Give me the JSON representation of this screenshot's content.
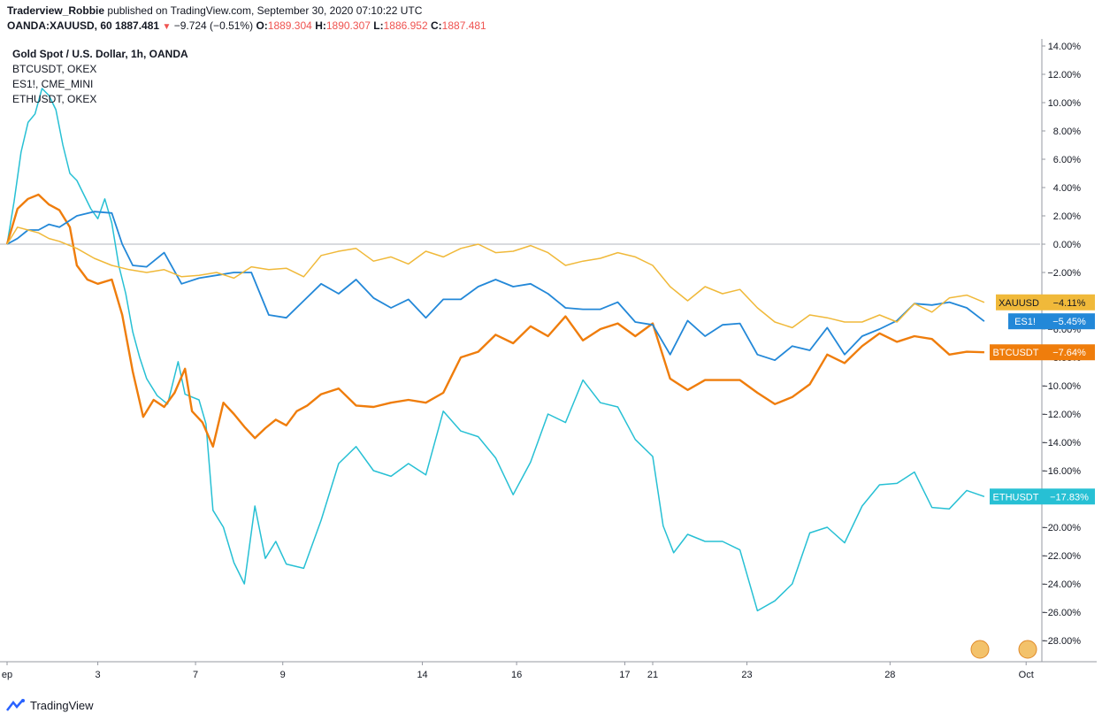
{
  "header": {
    "author": "Traderview_Robbie",
    "published": "published on TradingView.com, September 30, 2020 07:10:22 UTC"
  },
  "ohlc": {
    "symbol": "OANDA:XAUUSD, 60",
    "last": "1887.481",
    "change": "−9.724 (−0.51%)",
    "o_label": "O:",
    "o": "1889.304",
    "h_label": "H:",
    "h": "1890.307",
    "l_label": "L:",
    "l": "1886.952",
    "c_label": "C:",
    "c": "1887.481"
  },
  "legend": {
    "main": "Gold Spot / U.S. Dollar, 1h, OANDA",
    "items": [
      "BTCUSDT, OKEX",
      "ES1!, CME_MINI",
      "ETHUSDT, OKEX"
    ]
  },
  "footer": {
    "brand": "TradingView"
  },
  "colors": {
    "xauusd": "#f0b93a",
    "es1": "#2388d8",
    "btcusdt": "#ef7d0c",
    "ethusdt": "#27c0d4",
    "grid": "#e0e3eb",
    "zero_line": "#b2b5be"
  },
  "chart_data": {
    "type": "line",
    "ylabel_format": "percent",
    "ylim": [
      -29.5,
      14.5
    ],
    "yticks": [
      "14.00%",
      "12.00%",
      "10.00%",
      "8.00%",
      "6.00%",
      "4.00%",
      "2.00%",
      "0.00%",
      "−2.00%",
      "−4.00%",
      "−6.00%",
      "−8.00%",
      "−10.00%",
      "−12.00%",
      "−14.00%",
      "−16.00%",
      "−18.00%",
      "−20.00%",
      "−22.00%",
      "−24.00%",
      "−26.00%",
      "−28.00%"
    ],
    "ytick_values": [
      14,
      12,
      10,
      8,
      6,
      4,
      2,
      0,
      -2,
      -4,
      -6,
      -8,
      -10,
      -12,
      -14,
      -16,
      -18,
      -20,
      -22,
      -24,
      -26,
      -28
    ],
    "xlim": [
      0,
      29.6
    ],
    "xticks": [
      {
        "label": "ep",
        "x": 0
      },
      {
        "label": "3",
        "x": 2.6
      },
      {
        "label": "7",
        "x": 5.4
      },
      {
        "label": "9",
        "x": 7.9
      },
      {
        "label": "14",
        "x": 11.9
      },
      {
        "label": "16",
        "x": 14.6
      },
      {
        "label": "17",
        "x": 17.7
      },
      {
        "label": "21",
        "x": 18.5
      },
      {
        "label": "23",
        "x": 21.2
      },
      {
        "label": "28",
        "x": 25.3
      },
      {
        "label": "Oct",
        "x": 29.2
      }
    ],
    "series": [
      {
        "name": "XAUUSD",
        "tag": "XAUUSD",
        "last_label": "−4.11%",
        "last": -4.11,
        "points": [
          [
            0,
            0
          ],
          [
            0.3,
            1.2
          ],
          [
            0.6,
            1.0
          ],
          [
            0.9,
            0.8
          ],
          [
            1.2,
            0.4
          ],
          [
            1.5,
            0.2
          ],
          [
            2.0,
            -0.3
          ],
          [
            2.5,
            -1.0
          ],
          [
            3.0,
            -1.5
          ],
          [
            3.5,
            -1.8
          ],
          [
            4.0,
            -2.0
          ],
          [
            4.5,
            -1.8
          ],
          [
            5.0,
            -2.3
          ],
          [
            5.5,
            -2.2
          ],
          [
            6.0,
            -2.0
          ],
          [
            6.5,
            -2.4
          ],
          [
            7.0,
            -1.6
          ],
          [
            7.5,
            -1.8
          ],
          [
            8.0,
            -1.7
          ],
          [
            8.5,
            -2.3
          ],
          [
            9.0,
            -0.8
          ],
          [
            9.5,
            -0.5
          ],
          [
            10.0,
            -0.3
          ],
          [
            10.5,
            -1.2
          ],
          [
            11.0,
            -0.9
          ],
          [
            11.5,
            -1.4
          ],
          [
            12.0,
            -0.5
          ],
          [
            12.5,
            -0.9
          ],
          [
            13.0,
            -0.3
          ],
          [
            13.5,
            0.0
          ],
          [
            14.0,
            -0.6
          ],
          [
            14.5,
            -0.5
          ],
          [
            15.0,
            -0.1
          ],
          [
            15.5,
            -0.6
          ],
          [
            16.0,
            -1.5
          ],
          [
            16.5,
            -1.2
          ],
          [
            17.0,
            -1.0
          ],
          [
            17.5,
            -0.6
          ],
          [
            18.0,
            -0.9
          ],
          [
            18.5,
            -1.5
          ],
          [
            19.0,
            -3.0
          ],
          [
            19.5,
            -4.0
          ],
          [
            20.0,
            -3.0
          ],
          [
            20.5,
            -3.5
          ],
          [
            21.0,
            -3.2
          ],
          [
            21.5,
            -4.5
          ],
          [
            22.0,
            -5.5
          ],
          [
            22.5,
            -5.9
          ],
          [
            23.0,
            -5.0
          ],
          [
            23.5,
            -5.2
          ],
          [
            24.0,
            -5.5
          ],
          [
            24.5,
            -5.5
          ],
          [
            25.0,
            -5.0
          ],
          [
            25.5,
            -5.5
          ],
          [
            26.0,
            -4.2
          ],
          [
            26.5,
            -4.8
          ],
          [
            27.0,
            -3.8
          ],
          [
            27.5,
            -3.6
          ],
          [
            28.0,
            -4.11
          ]
        ]
      },
      {
        "name": "ES1!",
        "tag": "ES1!",
        "last_label": "−5.45%",
        "last": -5.45,
        "points": [
          [
            0,
            0
          ],
          [
            0.3,
            0.4
          ],
          [
            0.6,
            1.0
          ],
          [
            0.9,
            1.0
          ],
          [
            1.2,
            1.4
          ],
          [
            1.5,
            1.2
          ],
          [
            2.0,
            2.0
          ],
          [
            2.5,
            2.3
          ],
          [
            3.0,
            2.2
          ],
          [
            3.3,
            0.0
          ],
          [
            3.6,
            -1.5
          ],
          [
            4.0,
            -1.6
          ],
          [
            4.5,
            -0.6
          ],
          [
            5.0,
            -2.8
          ],
          [
            5.5,
            -2.4
          ],
          [
            6.0,
            -2.2
          ],
          [
            6.5,
            -2.0
          ],
          [
            7.0,
            -2.0
          ],
          [
            7.5,
            -5.0
          ],
          [
            8.0,
            -5.2
          ],
          [
            8.5,
            -4.0
          ],
          [
            9.0,
            -2.8
          ],
          [
            9.5,
            -3.5
          ],
          [
            10.0,
            -2.5
          ],
          [
            10.5,
            -3.8
          ],
          [
            11.0,
            -4.5
          ],
          [
            11.5,
            -3.9
          ],
          [
            12.0,
            -5.2
          ],
          [
            12.5,
            -3.9
          ],
          [
            13.0,
            -3.9
          ],
          [
            13.5,
            -3.0
          ],
          [
            14.0,
            -2.5
          ],
          [
            14.5,
            -3.0
          ],
          [
            15.0,
            -2.8
          ],
          [
            15.5,
            -3.5
          ],
          [
            16.0,
            -4.5
          ],
          [
            16.5,
            -4.6
          ],
          [
            17.0,
            -4.6
          ],
          [
            17.5,
            -4.1
          ],
          [
            18.0,
            -5.5
          ],
          [
            18.5,
            -5.7
          ],
          [
            19.0,
            -7.8
          ],
          [
            19.5,
            -5.4
          ],
          [
            20.0,
            -6.5
          ],
          [
            20.5,
            -5.7
          ],
          [
            21.0,
            -5.6
          ],
          [
            21.5,
            -7.8
          ],
          [
            22.0,
            -8.2
          ],
          [
            22.5,
            -7.2
          ],
          [
            23.0,
            -7.5
          ],
          [
            23.5,
            -5.9
          ],
          [
            24.0,
            -7.8
          ],
          [
            24.5,
            -6.5
          ],
          [
            25.0,
            -6.0
          ],
          [
            25.5,
            -5.4
          ],
          [
            26.0,
            -4.2
          ],
          [
            26.5,
            -4.3
          ],
          [
            27.0,
            -4.1
          ],
          [
            27.5,
            -4.5
          ],
          [
            28.0,
            -5.45
          ]
        ]
      },
      {
        "name": "BTCUSDT",
        "tag": "BTCUSDT",
        "last_label": "−7.64%",
        "last": -7.64,
        "points": [
          [
            0,
            0
          ],
          [
            0.3,
            2.5
          ],
          [
            0.6,
            3.2
          ],
          [
            0.9,
            3.5
          ],
          [
            1.2,
            2.8
          ],
          [
            1.5,
            2.4
          ],
          [
            1.8,
            1.2
          ],
          [
            2.0,
            -1.5
          ],
          [
            2.3,
            -2.5
          ],
          [
            2.6,
            -2.8
          ],
          [
            3.0,
            -2.5
          ],
          [
            3.3,
            -5.0
          ],
          [
            3.6,
            -9.0
          ],
          [
            3.9,
            -12.2
          ],
          [
            4.2,
            -11.0
          ],
          [
            4.5,
            -11.5
          ],
          [
            4.8,
            -10.5
          ],
          [
            5.1,
            -8.8
          ],
          [
            5.3,
            -11.8
          ],
          [
            5.6,
            -12.6
          ],
          [
            5.9,
            -14.3
          ],
          [
            6.2,
            -11.2
          ],
          [
            6.5,
            -12.0
          ],
          [
            6.8,
            -12.9
          ],
          [
            7.1,
            -13.7
          ],
          [
            7.4,
            -13.0
          ],
          [
            7.7,
            -12.4
          ],
          [
            8.0,
            -12.8
          ],
          [
            8.3,
            -11.8
          ],
          [
            8.6,
            -11.4
          ],
          [
            9.0,
            -10.6
          ],
          [
            9.5,
            -10.2
          ],
          [
            10.0,
            -11.4
          ],
          [
            10.5,
            -11.5
          ],
          [
            11.0,
            -11.2
          ],
          [
            11.5,
            -11.0
          ],
          [
            12.0,
            -11.2
          ],
          [
            12.5,
            -10.5
          ],
          [
            13.0,
            -8.0
          ],
          [
            13.5,
            -7.6
          ],
          [
            14.0,
            -6.4
          ],
          [
            14.5,
            -7.0
          ],
          [
            15.0,
            -5.8
          ],
          [
            15.5,
            -6.5
          ],
          [
            16.0,
            -5.1
          ],
          [
            16.5,
            -6.8
          ],
          [
            17.0,
            -6.0
          ],
          [
            17.5,
            -5.6
          ],
          [
            18.0,
            -6.5
          ],
          [
            18.5,
            -5.6
          ],
          [
            19.0,
            -9.5
          ],
          [
            19.5,
            -10.3
          ],
          [
            20.0,
            -9.6
          ],
          [
            20.5,
            -9.6
          ],
          [
            21.0,
            -9.6
          ],
          [
            21.5,
            -10.5
          ],
          [
            22.0,
            -11.3
          ],
          [
            22.5,
            -10.8
          ],
          [
            23.0,
            -9.9
          ],
          [
            23.5,
            -7.8
          ],
          [
            24.0,
            -8.4
          ],
          [
            24.5,
            -7.2
          ],
          [
            25.0,
            -6.3
          ],
          [
            25.5,
            -6.9
          ],
          [
            26.0,
            -6.5
          ],
          [
            26.5,
            -6.7
          ],
          [
            27.0,
            -7.8
          ],
          [
            27.5,
            -7.6
          ],
          [
            28.0,
            -7.64
          ]
        ]
      },
      {
        "name": "ETHUSDT",
        "tag": "ETHUSDT",
        "last_label": "−17.83%",
        "last": -17.83,
        "points": [
          [
            0,
            0
          ],
          [
            0.2,
            3.0
          ],
          [
            0.4,
            6.5
          ],
          [
            0.6,
            8.6
          ],
          [
            0.8,
            9.2
          ],
          [
            1.0,
            11.0
          ],
          [
            1.2,
            10.5
          ],
          [
            1.4,
            9.5
          ],
          [
            1.6,
            7.0
          ],
          [
            1.8,
            5.0
          ],
          [
            2.0,
            4.5
          ],
          [
            2.2,
            3.5
          ],
          [
            2.4,
            2.5
          ],
          [
            2.6,
            1.8
          ],
          [
            2.8,
            3.2
          ],
          [
            3.0,
            1.5
          ],
          [
            3.2,
            -1.5
          ],
          [
            3.4,
            -3.5
          ],
          [
            3.6,
            -6.2
          ],
          [
            3.8,
            -8.0
          ],
          [
            4.0,
            -9.5
          ],
          [
            4.3,
            -10.7
          ],
          [
            4.6,
            -11.3
          ],
          [
            4.9,
            -8.3
          ],
          [
            5.1,
            -10.6
          ],
          [
            5.3,
            -10.8
          ],
          [
            5.5,
            -11.0
          ],
          [
            5.7,
            -12.7
          ],
          [
            5.9,
            -18.8
          ],
          [
            6.2,
            -20.0
          ],
          [
            6.5,
            -22.5
          ],
          [
            6.8,
            -24.0
          ],
          [
            7.1,
            -18.5
          ],
          [
            7.4,
            -22.2
          ],
          [
            7.7,
            -21.0
          ],
          [
            8.0,
            -22.6
          ],
          [
            8.5,
            -22.9
          ],
          [
            9.0,
            -19.5
          ],
          [
            9.5,
            -15.5
          ],
          [
            10.0,
            -14.3
          ],
          [
            10.5,
            -16.0
          ],
          [
            11.0,
            -16.4
          ],
          [
            11.5,
            -15.5
          ],
          [
            12.0,
            -16.3
          ],
          [
            12.5,
            -11.8
          ],
          [
            13.0,
            -13.2
          ],
          [
            13.5,
            -13.6
          ],
          [
            14.0,
            -15.1
          ],
          [
            14.5,
            -17.7
          ],
          [
            15.0,
            -15.4
          ],
          [
            15.5,
            -12.0
          ],
          [
            16.0,
            -12.6
          ],
          [
            16.5,
            -9.6
          ],
          [
            17.0,
            -11.2
          ],
          [
            17.5,
            -11.5
          ],
          [
            18.0,
            -13.8
          ],
          [
            18.5,
            -15.0
          ],
          [
            18.8,
            -19.9
          ],
          [
            19.1,
            -21.8
          ],
          [
            19.5,
            -20.5
          ],
          [
            20.0,
            -21.0
          ],
          [
            20.5,
            -21.0
          ],
          [
            21.0,
            -21.6
          ],
          [
            21.5,
            -25.9
          ],
          [
            22.0,
            -25.2
          ],
          [
            22.5,
            -24.0
          ],
          [
            23.0,
            -20.4
          ],
          [
            23.5,
            -20.0
          ],
          [
            24.0,
            -21.1
          ],
          [
            24.5,
            -18.5
          ],
          [
            25.0,
            -17.0
          ],
          [
            25.5,
            -16.9
          ],
          [
            26.0,
            -16.1
          ],
          [
            26.5,
            -18.6
          ],
          [
            27.0,
            -18.7
          ],
          [
            27.5,
            -17.4
          ],
          [
            28.0,
            -17.83
          ]
        ]
      }
    ]
  }
}
